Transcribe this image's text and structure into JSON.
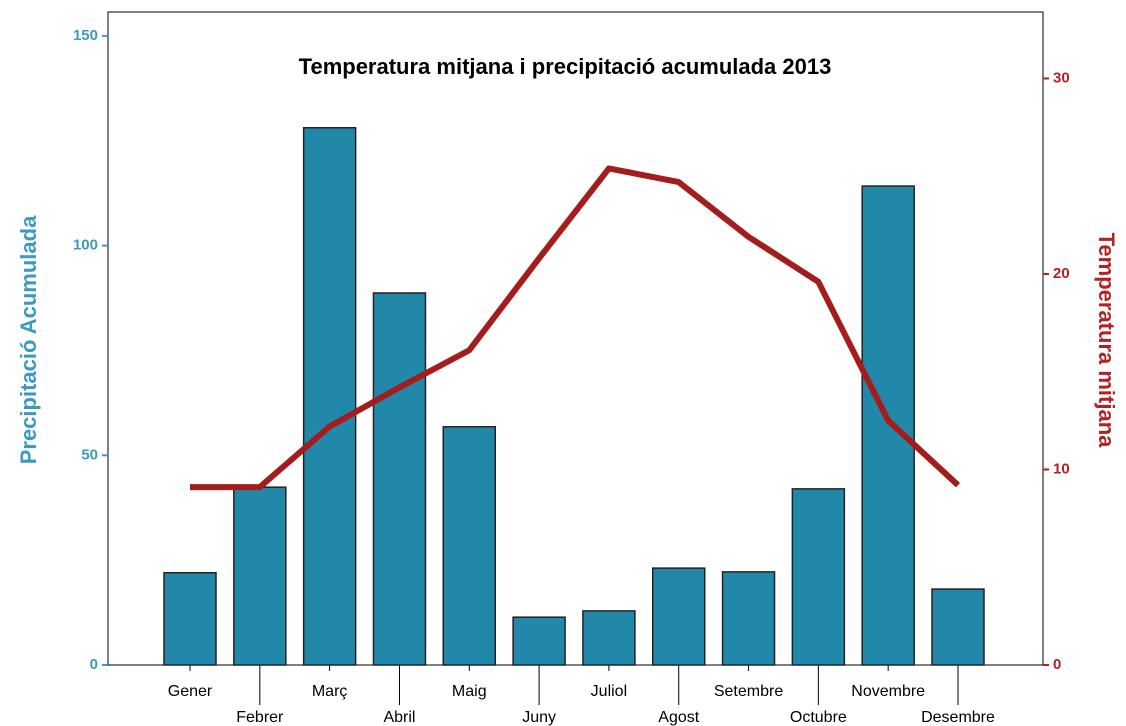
{
  "chart_data": {
    "type": "bar_line",
    "title": "Temperatura mitjana i precipitació acumulada 2013",
    "ylabel": "Precipitació Acumulada",
    "y2label": "Temperatura mitjana",
    "categories": [
      "Gener",
      "Febrer",
      "Març",
      "Abril",
      "Maig",
      "Juny",
      "Juliol",
      "Agost",
      "Setembre",
      "Octubre",
      "Novembre",
      "Desembre"
    ],
    "series": [
      {
        "type": "bar",
        "color": "#2288aa",
        "values": [
          22,
          42.4,
          128.1,
          88.7,
          56.8,
          11.4,
          12.9,
          23.1,
          22.2,
          42,
          114.2,
          18.1
        ]
      },
      {
        "type": "line",
        "axis": "y2",
        "color": "#a51c1c",
        "values": [
          9.1,
          9.1,
          12.2,
          14.2,
          16.1,
          20.8,
          25.4,
          24.7,
          21.9,
          19.6,
          12.5,
          9.2
        ]
      }
    ],
    "ylim": [
      0,
      155.7
    ],
    "yticks": [
      0,
      50,
      100,
      150
    ],
    "y2lim": [
      0,
      33.4
    ],
    "y2ticks": [
      0,
      10,
      20,
      30
    ],
    "ycolor": "#3a9ac0",
    "y2color": "#b22222"
  }
}
